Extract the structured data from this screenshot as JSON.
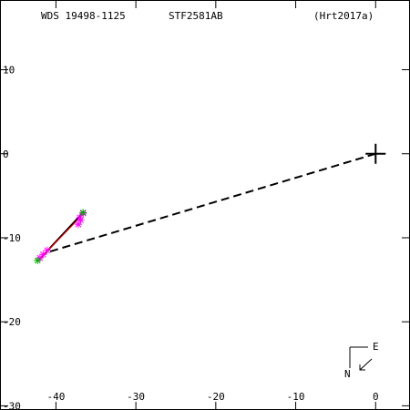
{
  "header": {
    "wds": "WDS 19498-1125",
    "designation": "STF2581AB",
    "reference": "(Hrt2017a)"
  },
  "compass": {
    "east_label": "E",
    "north_label": "N"
  },
  "colors": {
    "frame": "#000000",
    "orbit": "#000000",
    "fit_line": "#ff0000",
    "observation": "#ff00ff",
    "recent_observation": "#00aa00",
    "dashed_line": "#000000"
  },
  "chart_data": {
    "type": "scatter",
    "title": "",
    "xlabel": "",
    "ylabel": "",
    "xlim": [
      -47,
      4.3
    ],
    "ylim": [
      -30.5,
      18.3
    ],
    "x_ticks": [
      -40,
      -30,
      -20,
      -10,
      0
    ],
    "y_ticks": [
      10,
      0,
      -10,
      -20,
      -30
    ],
    "primary_star": {
      "x": 0,
      "y": 0
    },
    "orbit_line": {
      "from": [
        -42.1,
        -12.6
      ],
      "to": [
        -36.6,
        -7.0
      ]
    },
    "fit_line": {
      "from": [
        -42.0,
        -12.5
      ],
      "to": [
        -36.8,
        -7.4
      ]
    },
    "dashed_line": {
      "from": [
        0,
        0
      ],
      "to": [
        -41.3,
        -11.8
      ]
    },
    "series": [
      {
        "values": [
          {
            "x": -42.0,
            "y": -12.4
          },
          {
            "x": -41.6,
            "y": -12.0
          },
          {
            "x": -41.1,
            "y": -11.5
          },
          {
            "x": -37.2,
            "y": -8.4
          },
          {
            "x": -37.0,
            "y": -7.6
          },
          {
            "x": -36.6,
            "y": -7.1
          },
          {
            "x": -36.9,
            "y": -7.9
          }
        ]
      },
      {
        "values": [
          {
            "x": -42.3,
            "y": -12.7
          },
          {
            "x": -36.6,
            "y": -7.0
          }
        ]
      }
    ]
  }
}
